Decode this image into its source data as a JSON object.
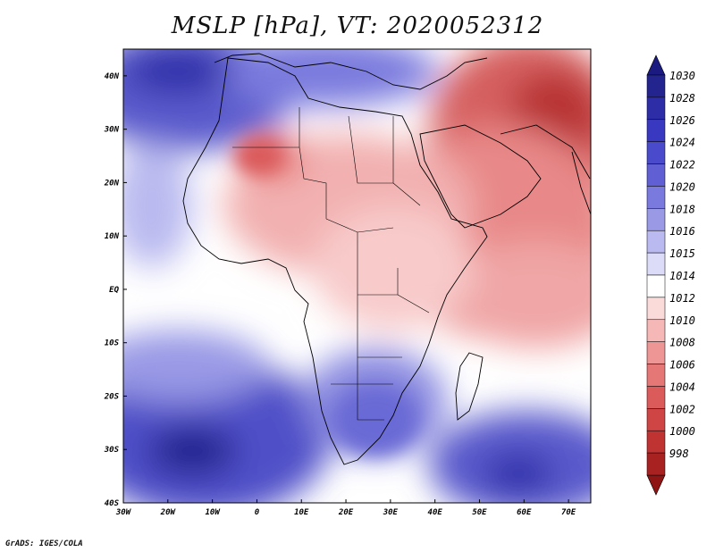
{
  "title": "MSLP [hPa], VT: 2020052312",
  "credit": "GrADS: IGES/COLA",
  "map": {
    "lon_range": [
      -30,
      75
    ],
    "lat_range": [
      -40,
      45
    ],
    "lon_ticks": [
      {
        "value": -30,
        "label": "30W"
      },
      {
        "value": -20,
        "label": "20W"
      },
      {
        "value": -10,
        "label": "10W"
      },
      {
        "value": 0,
        "label": "0"
      },
      {
        "value": 10,
        "label": "10E"
      },
      {
        "value": 20,
        "label": "20E"
      },
      {
        "value": 30,
        "label": "30E"
      },
      {
        "value": 40,
        "label": "40E"
      },
      {
        "value": 50,
        "label": "50E"
      },
      {
        "value": 60,
        "label": "60E"
      },
      {
        "value": 70,
        "label": "70E"
      }
    ],
    "lat_ticks": [
      {
        "value": 40,
        "label": "40N"
      },
      {
        "value": 30,
        "label": "30N"
      },
      {
        "value": 20,
        "label": "20N"
      },
      {
        "value": 10,
        "label": "10N"
      },
      {
        "value": 0,
        "label": "EQ"
      },
      {
        "value": -10,
        "label": "10S"
      },
      {
        "value": -20,
        "label": "20S"
      },
      {
        "value": -30,
        "label": "30S"
      },
      {
        "value": -40,
        "label": "40S"
      }
    ]
  },
  "colorbar": {
    "levels": [
      {
        "label": "1030",
        "color": "#24248f"
      },
      {
        "label": "1028",
        "color": "#2d2da8"
      },
      {
        "label": "1026",
        "color": "#3838c0"
      },
      {
        "label": "1024",
        "color": "#4a4acc"
      },
      {
        "label": "1022",
        "color": "#6060d4"
      },
      {
        "label": "1020",
        "color": "#7a7ade"
      },
      {
        "label": "1018",
        "color": "#9999e6"
      },
      {
        "label": "1016",
        "color": "#babaf0"
      },
      {
        "label": "1015",
        "color": "#dcdcf8"
      },
      {
        "label": "1014",
        "color": "#ffffff"
      },
      {
        "label": "1012",
        "color": "#fbdada"
      },
      {
        "label": "1010",
        "color": "#f6b7b7"
      },
      {
        "label": "1008",
        "color": "#ee9696"
      },
      {
        "label": "1006",
        "color": "#e57777"
      },
      {
        "label": "1004",
        "color": "#db5a5a"
      },
      {
        "label": "1002",
        "color": "#cf4444"
      },
      {
        "label": "1000",
        "color": "#c03333"
      },
      {
        "label": "998",
        "color": "#a82222"
      }
    ],
    "top_arrow_color": "#1a1a80",
    "bottom_arrow_color": "#8f1515"
  }
}
